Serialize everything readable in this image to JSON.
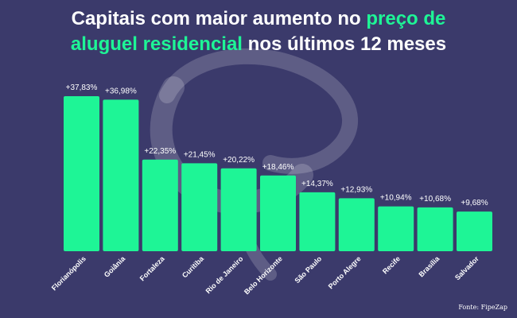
{
  "title": {
    "part1": "Capitais com maior aumento no ",
    "part2": "preço de",
    "part3": "aluguel residencial",
    "part4": " nos últimos 12 meses"
  },
  "source": "Fonte: FipeZap",
  "colors": {
    "background": "#3b3a6b",
    "bar": "#1ef596",
    "title_highlight": "#1ef596",
    "text": "#ffffff"
  },
  "chart_data": {
    "type": "bar",
    "categories": [
      "Florianópolis",
      "Goiânia",
      "Fortaleza",
      "Curitiba",
      "Rio de Janeiro",
      "Belo Horizonte",
      "São Paulo",
      "Porto Alegre",
      "Recife",
      "Brasília",
      "Salvador"
    ],
    "values": [
      37.83,
      36.98,
      22.35,
      21.45,
      20.22,
      18.46,
      14.37,
      12.93,
      10.94,
      10.68,
      9.68
    ],
    "data_labels": [
      "+37,83%",
      "+36,98%",
      "+22,35%",
      "+21,45%",
      "+20,22%",
      "+18,46%",
      "+14,37%",
      "+12,93%",
      "+10,94%",
      "+10,68%",
      "+9,68%"
    ],
    "ylim": [
      0,
      37.83
    ],
    "grid": false,
    "legend": "none"
  }
}
